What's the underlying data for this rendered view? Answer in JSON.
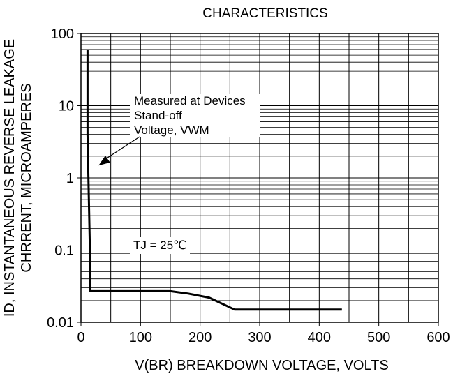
{
  "chart_data": {
    "type": "line",
    "title": "CHARACTERISTICS",
    "xlabel": "V(BR) BREAKDOWN VOLTAGE, VOLTS",
    "ylabel_line1": "ID, INSTANTANEOUS REVERSE LEAKAGE",
    "ylabel_line2": "CHRRENT, MICROAMPERES",
    "xlim": [
      0,
      600
    ],
    "ylim": [
      0.01,
      100
    ],
    "yscale": "log",
    "grid": true,
    "x_ticks": [
      "0",
      "100",
      "200",
      "300",
      "400",
      "500",
      "600"
    ],
    "y_ticks": [
      "0.01",
      "0.1",
      "1",
      "10",
      "100"
    ],
    "series": [
      {
        "x": [
          11,
          11,
          15,
          15,
          150,
          180,
          215,
          258,
          438
        ],
        "y": [
          60,
          4,
          0.1,
          0.027,
          0.027,
          0.025,
          0.022,
          0.015,
          0.015
        ]
      }
    ],
    "annotations": {
      "measured_line1": "Measured at Devices",
      "measured_line2": "Stand-off",
      "measured_line3": "Voltage, VWM",
      "arrow_target": {
        "x": 12,
        "y": 1.3
      },
      "tj_label": "TJ = 25℃"
    }
  }
}
